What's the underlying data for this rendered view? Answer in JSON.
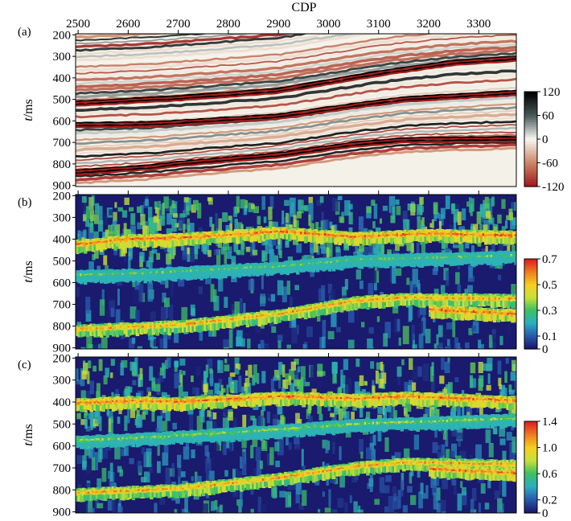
{
  "chart_data": [
    {
      "type": "heatmap",
      "panel_label": "(a)",
      "xlabel": "CDP",
      "ylabel_italic": "t",
      "ylabel_unit": "/ms",
      "x_ticks": [
        "2500",
        "2600",
        "2700",
        "2800",
        "2900",
        "3000",
        "3100",
        "3200",
        "3300"
      ],
      "y_ticks": [
        "200",
        "300",
        "400",
        "500",
        "600",
        "700",
        "800",
        "900"
      ],
      "xlim": [
        2495,
        3375
      ],
      "ylim": [
        195,
        905
      ],
      "colorbar": {
        "ticks": [
          "120",
          "60",
          "0",
          "-60",
          "-120"
        ],
        "range": [
          -120,
          120
        ],
        "colors": [
          "#000000",
          "#4a5a5a",
          "#f7f7f2",
          "#cc8a6a",
          "#a01e1e"
        ]
      },
      "reflectors": [
        {
          "points": [
            [
              2495,
              840
            ],
            [
              2650,
              815
            ],
            [
              2700,
              800
            ],
            [
              2900,
              760
            ],
            [
              3050,
              710
            ],
            [
              3150,
              690
            ],
            [
              3375,
              685
            ]
          ],
          "amplitude": 110
        },
        {
          "points": [
            [
              2495,
              620
            ],
            [
              2650,
              615
            ],
            [
              2900,
              580
            ],
            [
              3050,
              530
            ],
            [
              3150,
              500
            ],
            [
              3375,
              470
            ]
          ],
          "amplitude": 90
        },
        {
          "points": [
            [
              2495,
              520
            ],
            [
              2700,
              495
            ],
            [
              2900,
              460
            ],
            [
              3100,
              380
            ],
            [
              3250,
              330
            ],
            [
              3375,
              310
            ]
          ],
          "amplitude": 100
        }
      ]
    },
    {
      "type": "heatmap",
      "panel_label": "(b)",
      "ylabel_italic": "t",
      "ylabel_unit": "/ms",
      "x_ticks": [
        "2500",
        "2600",
        "2700",
        "2800",
        "2900",
        "3000",
        "3100",
        "3200",
        "3300"
      ],
      "y_ticks": [
        "200",
        "300",
        "400",
        "500",
        "600",
        "700",
        "800",
        "900"
      ],
      "xlim": [
        2495,
        3375
      ],
      "ylim": [
        195,
        905
      ],
      "colorbar": {
        "ticks": [
          "0.7",
          "0.5",
          "0.3",
          "0.1",
          "0"
        ],
        "range": [
          0,
          0.7
        ],
        "colors": [
          "#1a1a6e",
          "#2a5db0",
          "#2bb0c0",
          "#3cc060",
          "#c8e03a",
          "#f5d020",
          "#f08020",
          "#e02020"
        ]
      },
      "bright_bands": [
        {
          "points": [
            [
              2495,
              420
            ],
            [
              2600,
              395
            ],
            [
              2700,
              390
            ],
            [
              2900,
              360
            ],
            [
              3050,
              385
            ],
            [
              3200,
              370
            ],
            [
              3375,
              380
            ]
          ],
          "value": 0.6
        },
        {
          "points": [
            [
              2495,
              560
            ],
            [
              2650,
              550
            ],
            [
              2900,
              520
            ],
            [
              3050,
              490
            ],
            [
              3375,
              470
            ]
          ],
          "value": 0.3
        },
        {
          "points": [
            [
              2495,
              810
            ],
            [
              2700,
              790
            ],
            [
              2900,
              740
            ],
            [
              3050,
              680
            ],
            [
              3150,
              665
            ],
            [
              3375,
              670
            ]
          ],
          "value": 0.55
        },
        {
          "points": [
            [
              3200,
              720
            ],
            [
              3375,
              740
            ]
          ],
          "value": 0.6
        }
      ]
    },
    {
      "type": "heatmap",
      "panel_label": "(c)",
      "ylabel_italic": "t",
      "ylabel_unit": "/ms",
      "x_ticks": [
        "2500",
        "2600",
        "2700",
        "2800",
        "2900",
        "3000",
        "3100",
        "3200",
        "3300"
      ],
      "y_ticks": [
        "200",
        "300",
        "400",
        "500",
        "600",
        "700",
        "800",
        "900"
      ],
      "xlim": [
        2495,
        3375
      ],
      "ylim": [
        195,
        905
      ],
      "colorbar": {
        "ticks": [
          "1.4",
          "1.0",
          "0.6",
          "0.2",
          "0"
        ],
        "range": [
          0,
          1.4
        ],
        "colors": [
          "#1a1a6e",
          "#2a5db0",
          "#2bb0c0",
          "#3cc060",
          "#c8e03a",
          "#f5d020",
          "#f08020",
          "#e02020"
        ]
      },
      "bright_bands": [
        {
          "points": [
            [
              2495,
              400
            ],
            [
              2600,
              390
            ],
            [
              2700,
              395
            ],
            [
              2900,
              370
            ],
            [
              3050,
              380
            ],
            [
              3150,
              370
            ],
            [
              3375,
              390
            ]
          ],
          "value": 1.2
        },
        {
          "points": [
            [
              2495,
              570
            ],
            [
              2650,
              555
            ],
            [
              2900,
              520
            ],
            [
              3050,
              495
            ],
            [
              3375,
              470
            ]
          ],
          "value": 0.7
        },
        {
          "points": [
            [
              2495,
              810
            ],
            [
              2700,
              790
            ],
            [
              2900,
              740
            ],
            [
              3050,
              690
            ],
            [
              3150,
              670
            ],
            [
              3375,
              680
            ]
          ],
          "value": 1.1
        },
        {
          "points": [
            [
              3200,
              700
            ],
            [
              3375,
              720
            ]
          ],
          "value": 1.2
        }
      ]
    }
  ]
}
